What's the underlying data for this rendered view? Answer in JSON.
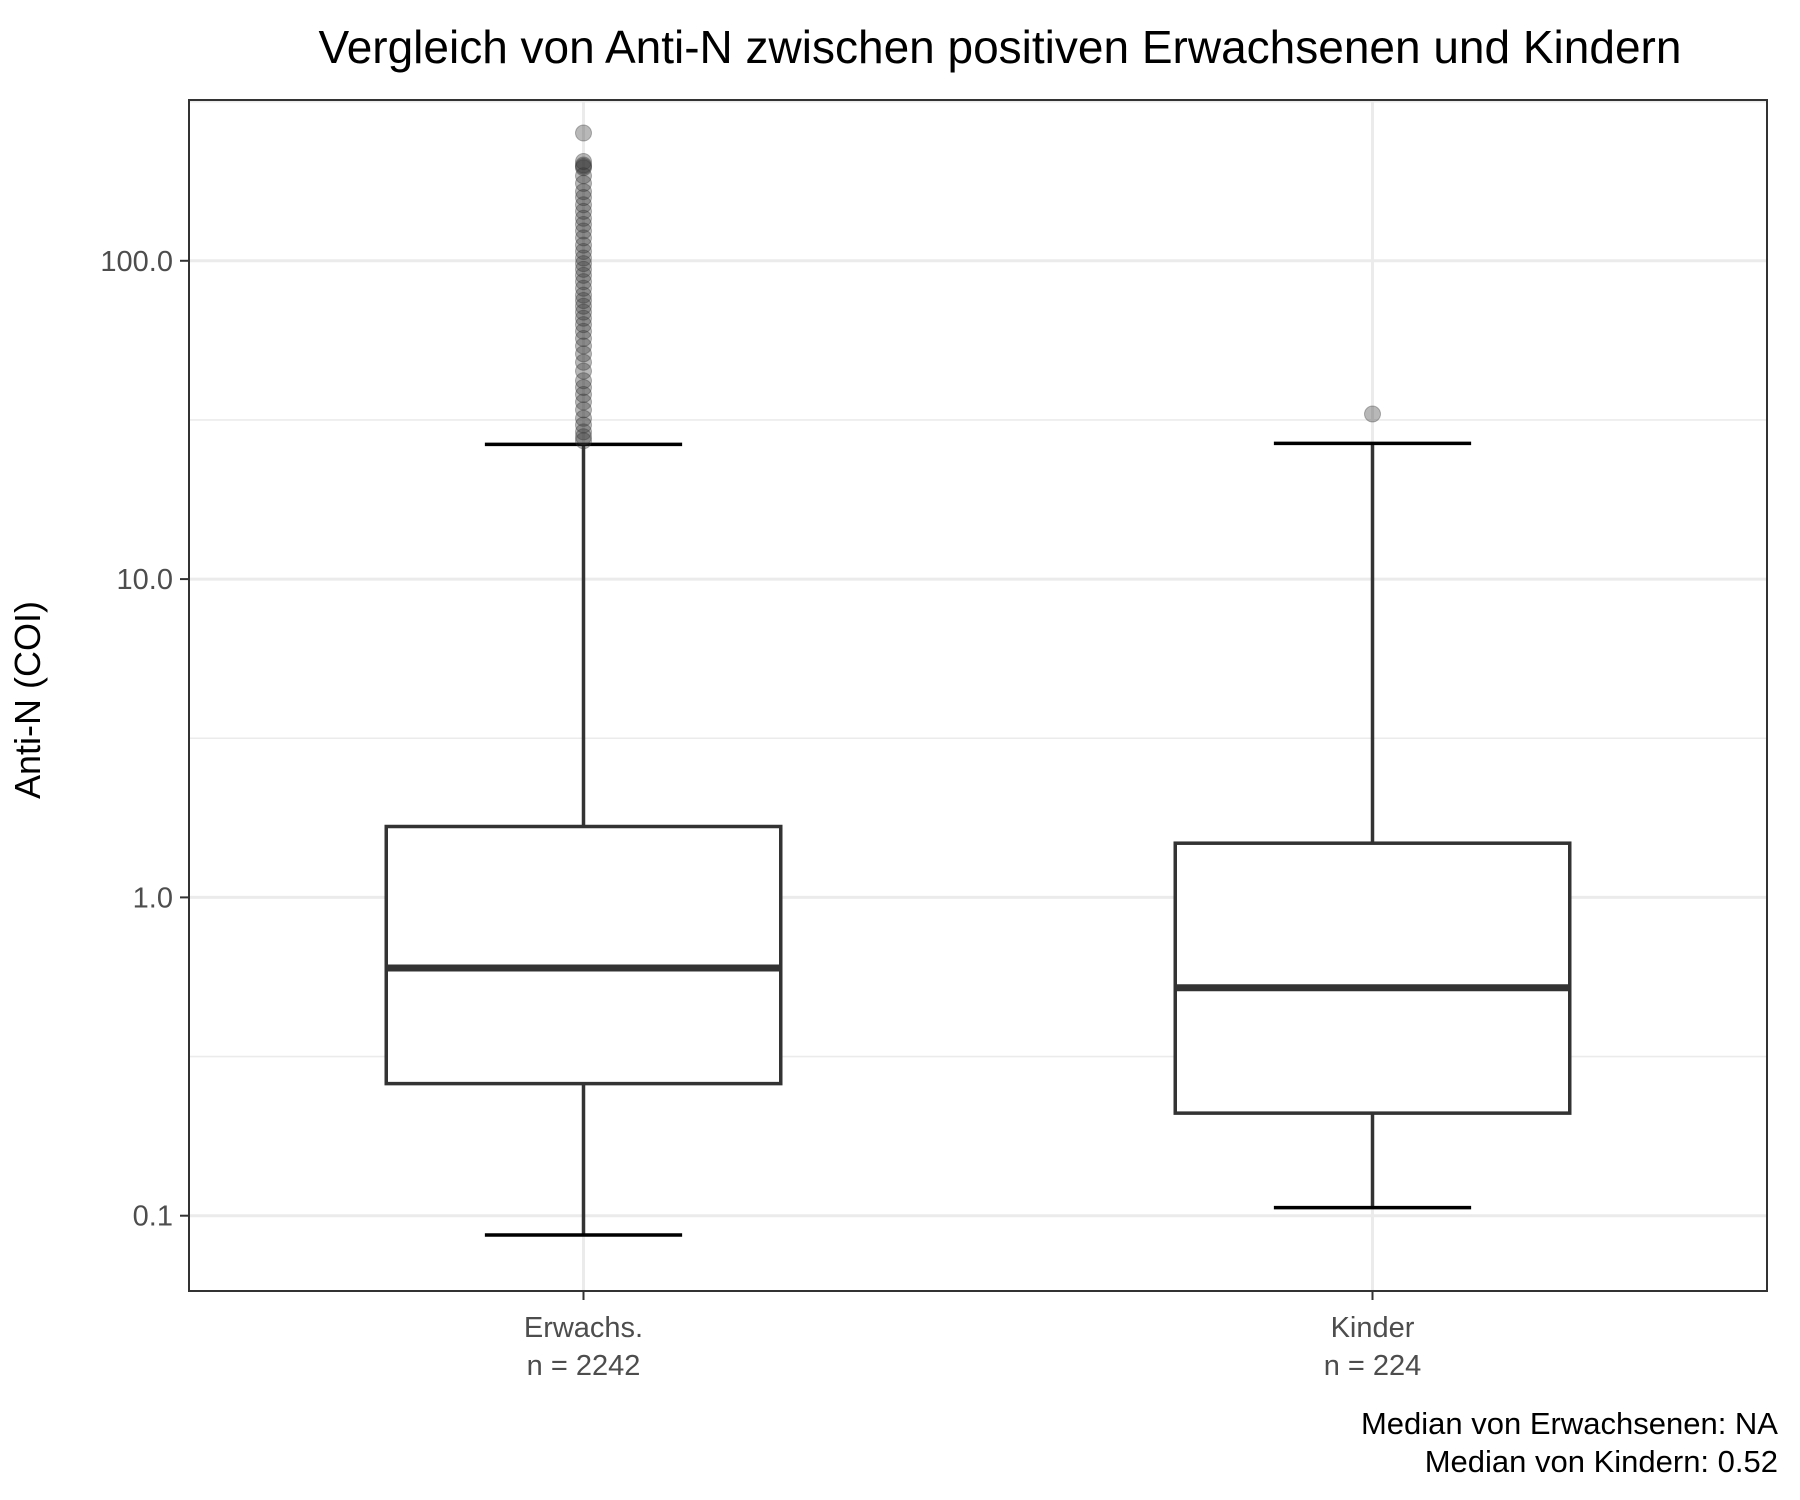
{
  "chart_data": {
    "type": "box",
    "title": "Vergleich von Anti-N zwischen positiven Erwachsenen und Kindern",
    "ylabel": "Anti-N (COI)",
    "xlabel": "",
    "y_scale": "log10",
    "ylim": [
      0.058,
      320
    ],
    "y_ticks": [
      0.1,
      1,
      10,
      100
    ],
    "y_tick_labels": [
      "0.1",
      "1.0",
      "10.0",
      "100.0"
    ],
    "grid": true,
    "categories": [
      {
        "label_line1": "Erwachs.",
        "label_line2": "n = 2242"
      },
      {
        "label_line1": "Kinder",
        "label_line2": "n = 224"
      }
    ],
    "boxes": [
      {
        "whisker_low": 0.087,
        "q1": 0.26,
        "median": 0.6,
        "q3": 1.67,
        "whisker_high": 26.5,
        "outliers": [
          252,
          205,
          200,
          198,
          196,
          185,
          175,
          165,
          158,
          150,
          143,
          136,
          130,
          124,
          118,
          112,
          107,
          102,
          98,
          94,
          90,
          86,
          82,
          78,
          75,
          72,
          69,
          66,
          63,
          60,
          57,
          54,
          51,
          48,
          45,
          42,
          40,
          38,
          36,
          34,
          32,
          30.5,
          29,
          28,
          27.2
        ]
      },
      {
        "whisker_low": 0.106,
        "q1": 0.21,
        "median": 0.52,
        "q3": 1.48,
        "whisker_high": 26.7,
        "outliers": [
          33
        ]
      }
    ],
    "caption_lines": [
      "Median von Erwachsenen: NA",
      "Median von Kindern: 0.52"
    ]
  }
}
